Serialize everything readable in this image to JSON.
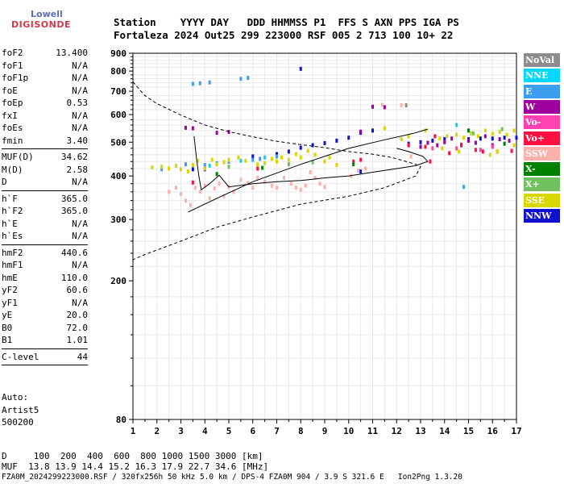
{
  "logo": {
    "line1": "Lowell",
    "line2": "DIGISONDE"
  },
  "header": {
    "labels": "Station    YYYY DAY   DDD HHMMSS P1  FFS S AXN PPS IGA PS",
    "values": "Fortaleza 2024 Out25 299 223000 RSF 005 2 713 100 10+ 22"
  },
  "params": {
    "g1": [
      {
        "k": "foF2",
        "v": "13.400"
      },
      {
        "k": "foF1",
        "v": "N/A"
      },
      {
        "k": "foF1p",
        "v": "N/A"
      },
      {
        "k": "foE",
        "v": "N/A"
      },
      {
        "k": "foEp",
        "v": "0.53"
      },
      {
        "k": "fxI",
        "v": "N/A"
      },
      {
        "k": "foEs",
        "v": "N/A"
      },
      {
        "k": "fmin",
        "v": "3.40"
      }
    ],
    "g2": [
      {
        "k": "MUF(D)",
        "v": "34.62"
      },
      {
        "k": "M(D)",
        "v": "2.58"
      },
      {
        "k": "D",
        "v": "N/A"
      }
    ],
    "g3": [
      {
        "k": "h`F",
        "v": "365.0"
      },
      {
        "k": "h`F2",
        "v": "365.0"
      },
      {
        "k": "h`E",
        "v": "N/A"
      },
      {
        "k": "h`Es",
        "v": "N/A"
      }
    ],
    "g4": [
      {
        "k": "hmF2",
        "v": "440.6"
      },
      {
        "k": "hmF1",
        "v": "N/A"
      },
      {
        "k": "hmE",
        "v": "110.0"
      },
      {
        "k": "yF2",
        "v": "60.6"
      },
      {
        "k": "yF1",
        "v": "N/A"
      },
      {
        "k": "yE",
        "v": "20.0"
      },
      {
        "k": "B0",
        "v": "72.0"
      },
      {
        "k": "B1",
        "v": "1.01"
      }
    ],
    "g5": [
      {
        "k": "C-level",
        "v": "44"
      }
    ]
  },
  "auto": {
    "l1": "Auto:",
    "l2": "Artist5",
    "l3": "500200"
  },
  "footer": {
    "d_row": "D     100  200  400  600  800 1000 1500 3000 [km]",
    "muf_row": "MUF  13.8 13.9 14.4 15.2 16.3 17.9 22.7 34.6 [MHz]",
    "file_row": "FZA0M_2024299223000.RSF / 320fx256h 50 kHz 5.0 km / DPS-4 FZA0M 904 / 3.9 S 321.6 E   Ion2Png 1.3.20"
  },
  "legend": [
    {
      "label": "NoVal",
      "color": "#8c8c8c"
    },
    {
      "label": "NNE",
      "color": "#00d8ff"
    },
    {
      "label": "E",
      "color": "#3c9ef0"
    },
    {
      "label": "W",
      "color": "#a000a0"
    },
    {
      "label": "Vo-",
      "color": "#ff40b0"
    },
    {
      "label": "Vo+",
      "color": "#ff1040"
    },
    {
      "label": "SSW",
      "color": "#ffb0a8"
    },
    {
      "label": "X-",
      "color": "#008000"
    },
    {
      "label": "X+",
      "color": "#70c060"
    },
    {
      "label": "SSE",
      "color": "#d8d800"
    },
    {
      "label": "NNW",
      "color": "#1010d0"
    }
  ],
  "chart_data": {
    "type": "scatter",
    "title": "",
    "xlabel": "",
    "ylabel": "",
    "xlim": [
      1,
      17
    ],
    "ylim": [
      80,
      900
    ],
    "x_ticks": [
      "1",
      "2",
      "3",
      "4",
      "5",
      "6",
      "7",
      "8",
      "9",
      "10",
      "11",
      "12",
      "13",
      "14",
      "15",
      "16",
      "17"
    ],
    "y_ticks": [
      "80",
      "200",
      "300",
      "400",
      "500",
      "600",
      "700",
      "800",
      "900"
    ],
    "y_scale": "log",
    "grid": true,
    "legend_position": "right",
    "series": [
      {
        "name": "NNW",
        "color": "#1010d0",
        "points": [
          [
            3.5,
            418
          ],
          [
            4.0,
            418
          ],
          [
            5.0,
            440
          ],
          [
            6.0,
            455
          ],
          [
            7.0,
            462
          ],
          [
            7.5,
            470
          ],
          [
            8.0,
            482
          ],
          [
            8.5,
            490
          ],
          [
            9.0,
            497
          ],
          [
            9.5,
            505
          ],
          [
            10.0,
            515
          ],
          [
            10.5,
            532
          ],
          [
            11.0,
            540
          ],
          [
            12.5,
            495
          ],
          [
            13.0,
            500
          ],
          [
            13.5,
            505
          ],
          [
            14.0,
            510
          ],
          [
            15.0,
            510
          ],
          [
            15.5,
            512
          ],
          [
            16.0,
            512
          ],
          [
            16.5,
            515
          ],
          [
            17.0,
            515
          ],
          [
            8.0,
            812
          ],
          [
            10.5,
            412
          ]
        ]
      },
      {
        "name": "E",
        "color": "#3c9ef0",
        "points": [
          [
            3.2,
            432
          ],
          [
            3.5,
            735
          ],
          [
            3.8,
            738
          ],
          [
            4.0,
            430
          ],
          [
            4.2,
            742
          ],
          [
            4.5,
            435
          ],
          [
            5.0,
            440
          ],
          [
            5.5,
            760
          ],
          [
            5.8,
            765
          ],
          [
            6.0,
            445
          ],
          [
            6.3,
            448
          ],
          [
            7.0,
            455
          ],
          [
            2.2,
            418
          ],
          [
            14.8,
            372
          ]
        ]
      },
      {
        "name": "NNE",
        "color": "#00d8ff",
        "points": [
          [
            4.2,
            428
          ],
          [
            5.5,
            442
          ],
          [
            6.5,
            452
          ],
          [
            14.5,
            560
          ]
        ]
      },
      {
        "name": "W",
        "color": "#a000a0",
        "points": [
          [
            3.2,
            550
          ],
          [
            3.5,
            548
          ],
          [
            4.5,
            532
          ],
          [
            5.0,
            535
          ],
          [
            10.5,
            536
          ],
          [
            11.0,
            632
          ],
          [
            11.5,
            630
          ],
          [
            13.0,
            485
          ],
          [
            13.3,
            498
          ],
          [
            13.7,
            490
          ],
          [
            14.0,
            500
          ],
          [
            14.3,
            512
          ],
          [
            14.7,
            490
          ],
          [
            15.0,
            505
          ],
          [
            15.3,
            498
          ],
          [
            15.7,
            520
          ],
          [
            16.0,
            490
          ],
          [
            16.3,
            510
          ],
          [
            16.7,
            505
          ]
        ]
      },
      {
        "name": "Vo-",
        "color": "#ff40b0",
        "points": [
          [
            13.5,
            480
          ],
          [
            14.5,
            480
          ],
          [
            15.5,
            475
          ],
          [
            16.0,
            485
          ]
        ]
      },
      {
        "name": "Vo+",
        "color": "#ff1040",
        "points": [
          [
            3.5,
            383
          ],
          [
            6.2,
            420
          ],
          [
            10.2,
            440
          ],
          [
            10.5,
            445
          ],
          [
            12.5,
            490
          ],
          [
            13.2,
            485
          ],
          [
            13.6,
            520
          ],
          [
            14.2,
            465
          ],
          [
            14.7,
            492
          ],
          [
            15.3,
            475
          ],
          [
            16.2,
            470
          ],
          [
            16.8,
            472
          ],
          [
            15.6,
            470
          ],
          [
            13.4,
            440
          ]
        ]
      },
      {
        "name": "SSW",
        "color": "#ffb0a8",
        "points": [
          [
            2.5,
            360
          ],
          [
            2.8,
            370
          ],
          [
            3.0,
            355
          ],
          [
            3.2,
            340
          ],
          [
            3.4,
            330
          ],
          [
            3.6,
            370
          ],
          [
            3.8,
            360
          ],
          [
            4.0,
            375
          ],
          [
            4.2,
            345
          ],
          [
            4.4,
            368
          ],
          [
            4.6,
            380
          ],
          [
            4.8,
            350
          ],
          [
            5.0,
            372
          ],
          [
            5.2,
            360
          ],
          [
            5.5,
            390
          ],
          [
            5.8,
            382
          ],
          [
            6.0,
            370
          ],
          [
            6.2,
            395
          ],
          [
            6.5,
            385
          ],
          [
            6.8,
            375
          ],
          [
            7.0,
            370
          ],
          [
            7.3,
            395
          ],
          [
            7.6,
            380
          ],
          [
            7.8,
            370
          ],
          [
            8.0,
            365
          ],
          [
            8.2,
            375
          ],
          [
            8.4,
            410
          ],
          [
            8.6,
            395
          ],
          [
            8.8,
            380
          ],
          [
            9.0,
            372
          ],
          [
            10.1,
            400
          ],
          [
            10.4,
            415
          ],
          [
            10.7,
            420
          ],
          [
            11.4,
            640
          ],
          [
            12.2,
            638
          ],
          [
            12.6,
            455
          ]
        ]
      },
      {
        "name": "X-",
        "color": "#008000",
        "points": [
          [
            4.5,
            405
          ],
          [
            6.4,
            422
          ],
          [
            10.2,
            432
          ],
          [
            15.0,
            540
          ],
          [
            16.5,
            495
          ]
        ]
      },
      {
        "name": "X+",
        "color": "#70c060",
        "points": [
          [
            5.0,
            425
          ],
          [
            7.5,
            432
          ],
          [
            8.5,
            438
          ],
          [
            15.2,
            530
          ],
          [
            16.4,
            545
          ]
        ]
      },
      {
        "name": "SSE",
        "color": "#d8d800",
        "points": [
          [
            1.8,
            423
          ],
          [
            2.2,
            425
          ],
          [
            2.5,
            420
          ],
          [
            2.8,
            428
          ],
          [
            3.0,
            418
          ],
          [
            3.3,
            412
          ],
          [
            3.5,
            430
          ],
          [
            3.7,
            442
          ],
          [
            4.0,
            420
          ],
          [
            4.3,
            445
          ],
          [
            4.5,
            432
          ],
          [
            4.8,
            438
          ],
          [
            5.0,
            445
          ],
          [
            5.4,
            452
          ],
          [
            5.7,
            442
          ],
          [
            6.2,
            432
          ],
          [
            6.5,
            435
          ],
          [
            6.8,
            448
          ],
          [
            7.0,
            440
          ],
          [
            7.2,
            452
          ],
          [
            7.5,
            445
          ],
          [
            7.8,
            462
          ],
          [
            8.0,
            452
          ],
          [
            8.3,
            472
          ],
          [
            8.6,
            460
          ],
          [
            9.0,
            440
          ],
          [
            9.2,
            452
          ],
          [
            9.5,
            430
          ],
          [
            11.5,
            548
          ],
          [
            12.2,
            510
          ],
          [
            12.5,
            520
          ],
          [
            13.2,
            540
          ],
          [
            13.8,
            512
          ],
          [
            14.1,
            520
          ],
          [
            14.5,
            525
          ],
          [
            14.8,
            515
          ],
          [
            15.1,
            530
          ],
          [
            15.4,
            520
          ],
          [
            15.7,
            540
          ],
          [
            16.0,
            528
          ],
          [
            16.3,
            535
          ],
          [
            16.6,
            525
          ],
          [
            16.9,
            540
          ],
          [
            13.9,
            480
          ],
          [
            14.6,
            470
          ],
          [
            15.9,
            460
          ],
          [
            16.2,
            470
          ],
          [
            16.9,
            490
          ]
        ]
      },
      {
        "name": "NoVal",
        "color": "#8c8c8c",
        "points": [
          [
            12.4,
            638
          ]
        ]
      }
    ],
    "curves": [
      {
        "name": "model",
        "style": "dashed",
        "points": [
          [
            1.0,
            745
          ],
          [
            1.5,
            680
          ],
          [
            2.0,
            645
          ],
          [
            3.0,
            598
          ],
          [
            4.0,
            560
          ],
          [
            5.0,
            536
          ],
          [
            6.0,
            518
          ],
          [
            7.0,
            503
          ],
          [
            8.0,
            492
          ],
          [
            9.0,
            482
          ],
          [
            10.0,
            470
          ],
          [
            11.0,
            462
          ],
          [
            11.8,
            452
          ],
          [
            12.3,
            442
          ],
          [
            12.8,
            432
          ],
          [
            13.0,
            425
          ],
          [
            12.8,
            400
          ],
          [
            11.5,
            370
          ],
          [
            10.0,
            350
          ],
          [
            8.0,
            332
          ],
          [
            6.0,
            305
          ],
          [
            4.5,
            285
          ],
          [
            3.0,
            260
          ],
          [
            1.5,
            238
          ],
          [
            1.0,
            230
          ]
        ]
      },
      {
        "name": "trace",
        "style": "solid",
        "points": [
          [
            3.3,
            315
          ],
          [
            4.5,
            345
          ],
          [
            6.0,
            385
          ],
          [
            8.0,
            432
          ],
          [
            10.0,
            480
          ],
          [
            11.5,
            508
          ],
          [
            12.7,
            530
          ],
          [
            13.3,
            545
          ]
        ]
      },
      {
        "name": "profile",
        "style": "solid",
        "points": [
          [
            3.55,
            520
          ],
          [
            3.65,
            450
          ],
          [
            3.75,
            400
          ],
          [
            3.85,
            365
          ],
          [
            4.2,
            380
          ],
          [
            4.6,
            402
          ],
          [
            5.0,
            372
          ],
          [
            6.0,
            380
          ],
          [
            7.0,
            385
          ],
          [
            8.0,
            388
          ],
          [
            9.0,
            395
          ],
          [
            10.0,
            400
          ],
          [
            11.0,
            410
          ],
          [
            12.0,
            420
          ],
          [
            12.8,
            428
          ],
          [
            13.3,
            440
          ],
          [
            13.1,
            455
          ],
          [
            12.5,
            470
          ],
          [
            12.0,
            480
          ]
        ]
      }
    ]
  }
}
